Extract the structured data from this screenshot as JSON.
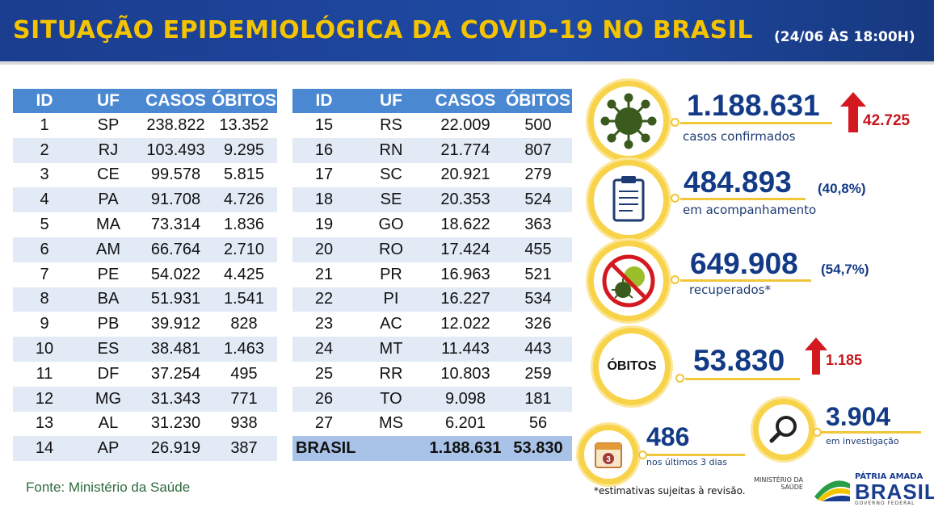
{
  "header": {
    "title": "SITUAÇÃO EPIDEMIOLÓGICA DA COVID-19 NO BRASIL",
    "date": "(24/06 ÀS 18:00H)"
  },
  "table": {
    "columns": [
      "ID",
      "UF",
      "CASOS",
      "ÓBITOS"
    ],
    "left_rows": [
      [
        "1",
        "SP",
        "238.822",
        "13.352"
      ],
      [
        "2",
        "RJ",
        "103.493",
        "9.295"
      ],
      [
        "3",
        "CE",
        "99.578",
        "5.815"
      ],
      [
        "4",
        "PA",
        "91.708",
        "4.726"
      ],
      [
        "5",
        "MA",
        "73.314",
        "1.836"
      ],
      [
        "6",
        "AM",
        "66.764",
        "2.710"
      ],
      [
        "7",
        "PE",
        "54.022",
        "4.425"
      ],
      [
        "8",
        "BA",
        "51.931",
        "1.541"
      ],
      [
        "9",
        "PB",
        "39.912",
        "828"
      ],
      [
        "10",
        "ES",
        "38.481",
        "1.463"
      ],
      [
        "11",
        "DF",
        "37.254",
        "495"
      ],
      [
        "12",
        "MG",
        "31.343",
        "771"
      ],
      [
        "13",
        "AL",
        "31.230",
        "938"
      ],
      [
        "14",
        "AP",
        "26.919",
        "387"
      ]
    ],
    "right_rows": [
      [
        "15",
        "RS",
        "22.009",
        "500"
      ],
      [
        "16",
        "RN",
        "21.774",
        "807"
      ],
      [
        "17",
        "SC",
        "20.921",
        "279"
      ],
      [
        "18",
        "SE",
        "20.353",
        "524"
      ],
      [
        "19",
        "GO",
        "18.622",
        "363"
      ],
      [
        "20",
        "RO",
        "17.424",
        "455"
      ],
      [
        "21",
        "PR",
        "16.963",
        "521"
      ],
      [
        "22",
        "PI",
        "16.227",
        "534"
      ],
      [
        "23",
        "AC",
        "12.022",
        "326"
      ],
      [
        "24",
        "MT",
        "11.443",
        "443"
      ],
      [
        "25",
        "RR",
        "10.803",
        "259"
      ],
      [
        "26",
        "TO",
        "9.098",
        "181"
      ],
      [
        "27",
        "MS",
        "6.201",
        "56"
      ]
    ],
    "total": {
      "label": "BRASIL",
      "casos": "1.188.631",
      "obitos": "53.830"
    }
  },
  "source": "Fonte: Ministério da Saúde",
  "stats": {
    "confirmed": {
      "value": "1.188.631",
      "label": "casos confirmados",
      "delta": "42.725",
      "icon": "virus-icon"
    },
    "monitoring": {
      "value": "484.893",
      "pct": "(40,8%)",
      "label": "em acompanhamento",
      "icon": "clipboard-icon"
    },
    "recovered": {
      "value": "649.908",
      "pct": "(54,7%)",
      "label": "recuperados*",
      "icon": "no-virus-icon"
    },
    "deaths": {
      "circle_label": "ÓBITOS",
      "value": "53.830",
      "delta": "1.185"
    },
    "last3": {
      "value": "486",
      "label": "nos últimos 3 dias",
      "calendar_num": "3",
      "icon": "calendar-icon"
    },
    "investigation": {
      "value": "3.904",
      "label": "em investigação",
      "icon": "magnifier-icon"
    }
  },
  "footnote": "*estimativas sujeitas à revisão.",
  "logos": {
    "ministry": "MINISTÉRIO DA SAÚDE",
    "brand_top": "PÁTRIA AMADA",
    "brand_main": "BRASIL",
    "brand_sub": "GOVERNO FEDERAL"
  },
  "colors": {
    "header_bg": "#1f4aa3",
    "title": "#f5c400",
    "table_header": "#4a88d1",
    "accent_ring": "#f8d34a",
    "value_text": "#123a86",
    "delta_red": "#c4161c"
  }
}
